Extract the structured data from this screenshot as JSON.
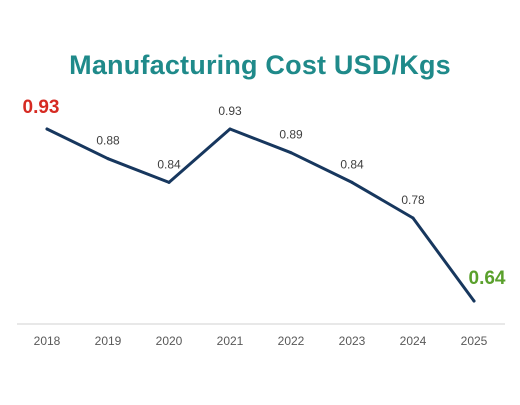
{
  "chart_data": {
    "type": "line",
    "title": "Manufacturing Cost USD/Kgs",
    "xlabel": "",
    "ylabel": "",
    "categories": [
      "2018",
      "2019",
      "2020",
      "2021",
      "2022",
      "2023",
      "2024",
      "2025"
    ],
    "series": [
      {
        "values": [
          0.93,
          0.88,
          0.84,
          0.93,
          0.89,
          0.84,
          0.78,
          0.64
        ],
        "data_labels": [
          "0.93",
          "0.88",
          "0.84",
          "0.93",
          "0.89",
          "0.84",
          "0.78",
          "0.64"
        ]
      }
    ],
    "ylim": [
      0.64,
      0.93
    ],
    "grid": false,
    "legend": "none",
    "colors": {
      "title": "#1f8a8a",
      "line": "#17375e",
      "axis": "#d0d0d0",
      "tick_label": "#595959",
      "data_label": "#404040",
      "highlight_start": "#d62a22",
      "highlight_end": "#5aa02c"
    },
    "highlighted_labels": {
      "first": "0.93",
      "last": "0.64"
    }
  }
}
